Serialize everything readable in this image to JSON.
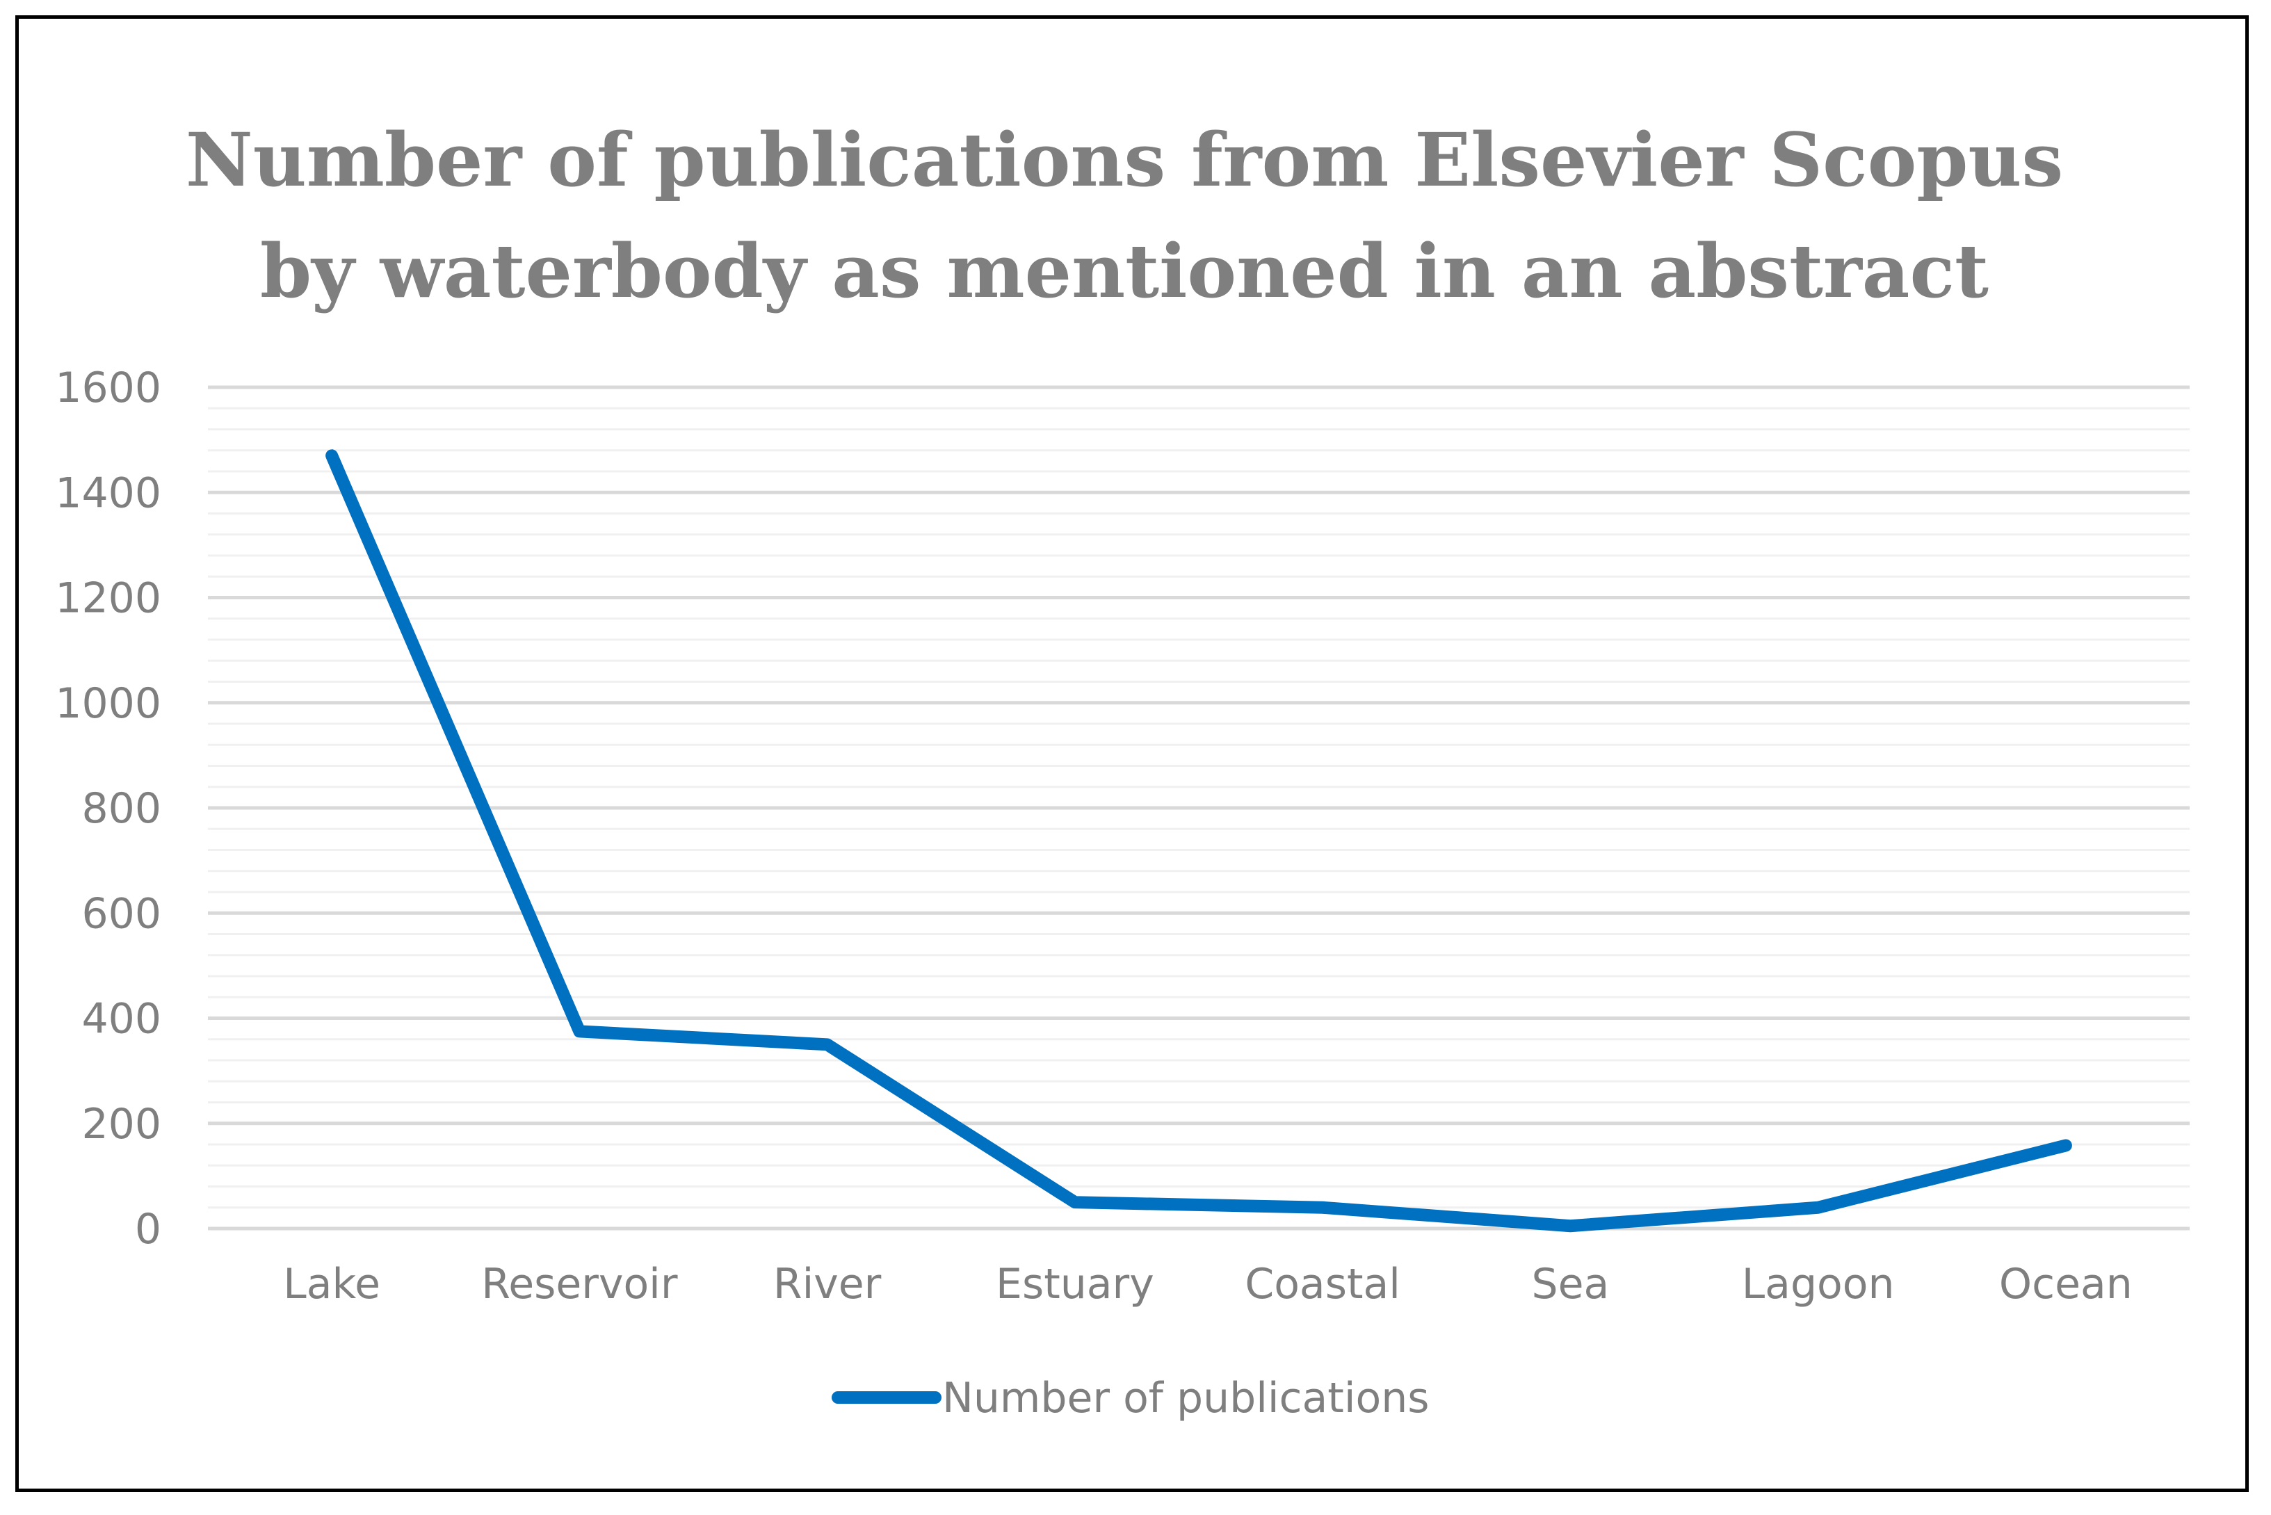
{
  "chart_data": {
    "type": "line",
    "title_lines": [
      "Number of publications from Elsevier Scopus",
      "by waterbody as mentioned in an abstract"
    ],
    "xlabel": "",
    "ylabel": "",
    "categories": [
      "Lake",
      "Reservoir",
      "River",
      "Estuary",
      "Coastal",
      "Sea",
      "Lagoon",
      "Ocean"
    ],
    "series": [
      {
        "name": "Number of publications",
        "color": "#0070c0",
        "values": [
          1470,
          375,
          350,
          50,
          40,
          5,
          40,
          158
        ]
      }
    ],
    "ylim": [
      0,
      1600
    ],
    "yticks": [
      0,
      200,
      400,
      600,
      800,
      1000,
      1200,
      1400,
      1600
    ],
    "ytick_labels": [
      "0",
      "200",
      "400",
      "600",
      "800",
      "1000",
      "1200",
      "1400",
      "1600"
    ],
    "minor_step": 40,
    "grid": true,
    "grid_major_color": "#d9d9d9",
    "grid_minor_color": "#f0f0f0",
    "legend": "bottom"
  }
}
